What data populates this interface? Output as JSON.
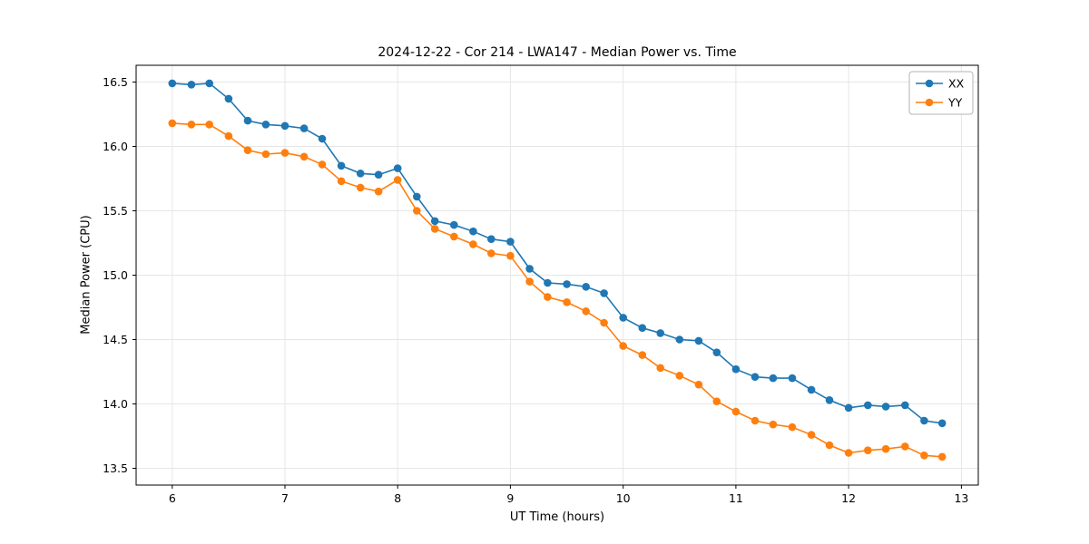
{
  "chart_data": {
    "type": "line",
    "title": "2024-12-22 - Cor 214 - LWA147 - Median Power vs. Time",
    "xlabel": "UT Time (hours)",
    "ylabel": "Median Power (CPU)",
    "xlim": [
      5.68,
      13.15
    ],
    "ylim": [
      13.37,
      16.63
    ],
    "xticks": [
      6,
      7,
      8,
      9,
      10,
      11,
      12,
      13
    ],
    "yticks": [
      13.5,
      14.0,
      14.5,
      15.0,
      15.5,
      16.0,
      16.5
    ],
    "grid": true,
    "legend_position": "upper right",
    "x": [
      6.0,
      6.17,
      6.33,
      6.5,
      6.67,
      6.83,
      7.0,
      7.17,
      7.33,
      7.5,
      7.67,
      7.83,
      8.0,
      8.17,
      8.33,
      8.5,
      8.67,
      8.83,
      9.0,
      9.17,
      9.33,
      9.5,
      9.67,
      9.83,
      10.0,
      10.17,
      10.33,
      10.5,
      10.67,
      10.83,
      11.0,
      11.17,
      11.33,
      11.5,
      11.67,
      11.83,
      12.0,
      12.17,
      12.33,
      12.5,
      12.67,
      12.83
    ],
    "series": [
      {
        "name": "XX",
        "color": "#1f77b4",
        "values": [
          16.49,
          16.48,
          16.49,
          16.37,
          16.2,
          16.17,
          16.16,
          16.14,
          16.06,
          15.85,
          15.79,
          15.78,
          15.83,
          15.61,
          15.42,
          15.39,
          15.34,
          15.28,
          15.26,
          15.05,
          14.94,
          14.93,
          14.91,
          14.86,
          14.67,
          14.59,
          14.55,
          14.5,
          14.49,
          14.4,
          14.27,
          14.21,
          14.2,
          14.2,
          14.11,
          14.03,
          13.97,
          13.99,
          13.98,
          13.99,
          13.87,
          13.85
        ]
      },
      {
        "name": "YY",
        "color": "#ff7f0e",
        "values": [
          16.18,
          16.17,
          16.17,
          16.08,
          15.97,
          15.94,
          15.95,
          15.92,
          15.86,
          15.73,
          15.68,
          15.65,
          15.74,
          15.5,
          15.36,
          15.3,
          15.24,
          15.17,
          15.15,
          14.95,
          14.83,
          14.79,
          14.72,
          14.63,
          14.45,
          14.38,
          14.28,
          14.22,
          14.15,
          14.02,
          13.94,
          13.87,
          13.84,
          13.82,
          13.76,
          13.68,
          13.62,
          13.64,
          13.65,
          13.67,
          13.6,
          13.59
        ]
      }
    ]
  }
}
